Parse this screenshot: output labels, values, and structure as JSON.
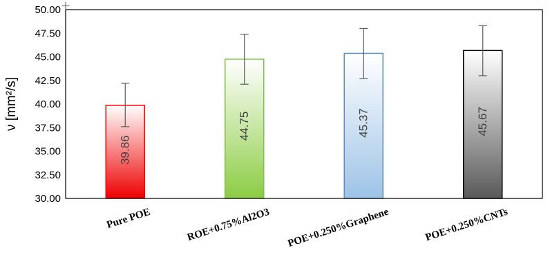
{
  "chart_data": {
    "type": "bar",
    "title": "",
    "xlabel": "",
    "ylabel": "ν [mm²/s]",
    "ylim": [
      30,
      50
    ],
    "yticks": [
      "30.00",
      "32.50",
      "35.00",
      "37.50",
      "40.00",
      "42.50",
      "45.00",
      "47.50",
      "50.00"
    ],
    "categories": [
      "Pure POE",
      "ROE+0.75%Al2O3",
      "POE+0.250%Graphene",
      "POE+0.250%CNTs"
    ],
    "values": [
      39.86,
      44.75,
      45.37,
      45.67
    ],
    "value_labels": [
      "39.86",
      "44.75",
      "45.37",
      "45.67"
    ],
    "error_bars": [
      {
        "low": 37.6,
        "high": 42.2
      },
      {
        "low": 42.1,
        "high": 47.4
      },
      {
        "low": 42.7,
        "high": 48.0
      },
      {
        "low": 43.0,
        "high": 48.3
      }
    ],
    "colors": {
      "bars": [
        {
          "top": "#ffffff",
          "bottom": "#ee0000",
          "edge": "#ff0000"
        },
        {
          "top": "#ffffff",
          "bottom": "#8ccc44",
          "edge": "#7dc242"
        },
        {
          "top": "#ffffff",
          "bottom": "#9dc3e6",
          "edge": "#5b8fc7"
        },
        {
          "top": "#ffffff",
          "bottom": "#595959",
          "edge": "#000000"
        }
      ],
      "error_bar": "#595959",
      "axis": "#000000"
    },
    "grid": false,
    "legend": "none"
  }
}
